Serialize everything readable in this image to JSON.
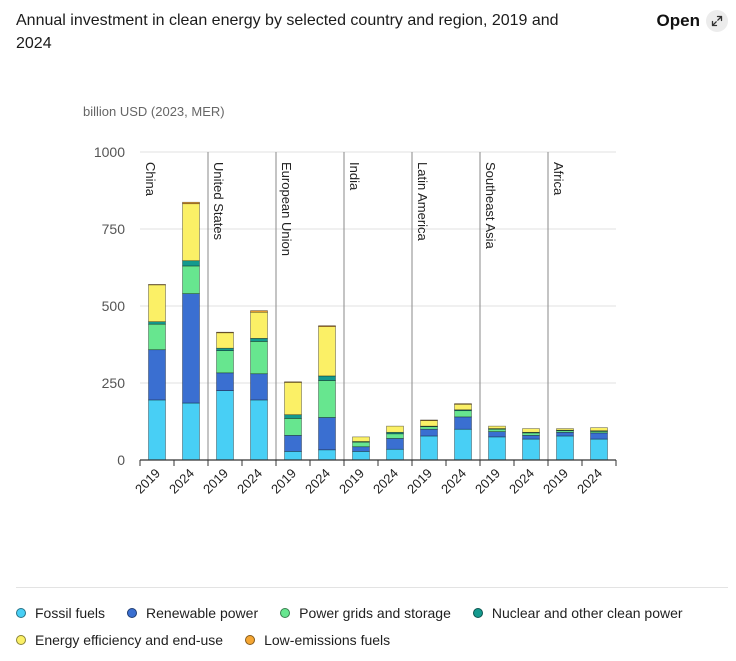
{
  "header": {
    "title": "Annual investment in clean energy by selected country and region, 2019 and 2024",
    "open_label": "Open",
    "open_icon": "external-expand-icon"
  },
  "colors": {
    "fossil": "#48cff5",
    "renewable": "#3a6fd1",
    "grids": "#67e68f",
    "nuclear": "#149a8e",
    "efficiency": "#fbf066",
    "lowemission": "#f5a633"
  },
  "chart_data": {
    "type": "bar",
    "stacked": true,
    "title": "Annual investment in clean energy by selected country and region, 2019 and 2024",
    "ylabel": "billion USD (2023, MER)",
    "ylim": [
      0,
      1000
    ],
    "yticks": [
      0,
      250,
      500,
      750,
      1000
    ],
    "grid": true,
    "legend_position": "bottom",
    "groups": [
      {
        "name": "China",
        "categories": [
          "2019",
          "2024"
        ]
      },
      {
        "name": "United States",
        "categories": [
          "2019",
          "2024"
        ]
      },
      {
        "name": "European Union",
        "categories": [
          "2019",
          "2024"
        ]
      },
      {
        "name": "India",
        "categories": [
          "2019",
          "2024"
        ]
      },
      {
        "name": "Latin America",
        "categories": [
          "2019",
          "2024"
        ]
      },
      {
        "name": "Southeast Asia",
        "categories": [
          "2019",
          "2024"
        ]
      },
      {
        "name": "Africa",
        "categories": [
          "2019",
          "2024"
        ]
      }
    ],
    "categories": [
      "2019",
      "2024",
      "2019",
      "2024",
      "2019",
      "2024",
      "2019",
      "2024",
      "2019",
      "2024",
      "2019",
      "2024",
      "2019",
      "2024"
    ],
    "series": [
      {
        "name": "Fossil fuels",
        "key": "fossil",
        "values": [
          195,
          185,
          225,
          195,
          28,
          33,
          28,
          35,
          78,
          100,
          75,
          68,
          78,
          68
        ]
      },
      {
        "name": "Renewable power",
        "key": "renewable",
        "values": [
          163,
          355,
          58,
          85,
          52,
          105,
          15,
          35,
          22,
          40,
          17,
          12,
          12,
          20
        ]
      },
      {
        "name": "Power grids and storage",
        "key": "grids",
        "values": [
          83,
          90,
          72,
          105,
          55,
          120,
          15,
          15,
          8,
          20,
          8,
          8,
          5,
          5
        ]
      },
      {
        "name": "Nuclear and other clean power",
        "key": "nuclear",
        "values": [
          8,
          17,
          8,
          10,
          12,
          15,
          2,
          5,
          2,
          3,
          2,
          2,
          2,
          2
        ]
      },
      {
        "name": "Energy efficiency and end-use",
        "key": "efficiency",
        "values": [
          120,
          185,
          50,
          85,
          105,
          160,
          15,
          20,
          18,
          18,
          8,
          12,
          5,
          10
        ]
      },
      {
        "name": "Low-emissions fuels",
        "key": "lowemission",
        "values": [
          1,
          5,
          2,
          5,
          2,
          3,
          0,
          0,
          2,
          2,
          0,
          0,
          0,
          0
        ]
      }
    ]
  }
}
